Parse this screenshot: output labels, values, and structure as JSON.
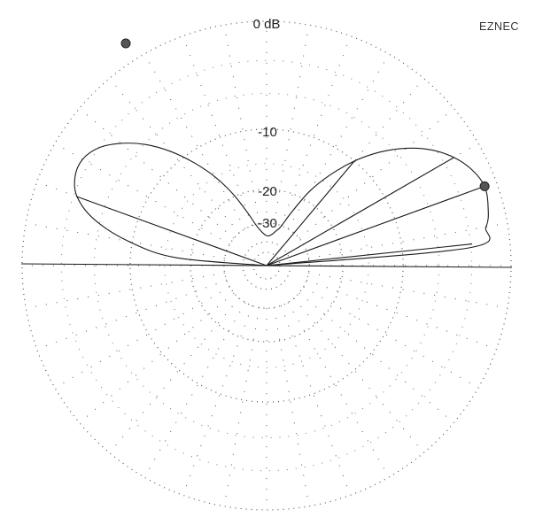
{
  "app": {
    "brand": "EZNEC"
  },
  "chart_data": {
    "type": "polar",
    "title": "",
    "ring_labels": [
      "0 dB",
      "-10",
      "-20",
      "-30"
    ],
    "ring_levels_db": [
      0,
      -10,
      -20,
      -30
    ],
    "radial_spokes_deg": 10,
    "pattern": {
      "angles_deg": [
        0,
        5,
        10,
        15,
        20,
        25,
        30,
        35,
        40,
        45,
        50,
        55,
        60,
        65,
        70,
        75,
        80,
        85,
        90,
        95,
        100,
        105,
        110,
        115,
        120,
        125,
        130,
        135,
        140,
        145,
        150,
        155,
        160,
        165,
        170,
        175,
        180
      ],
      "gain_db": [
        -99,
        -3.2,
        -1.6,
        -1.1,
        -0.9,
        -1.3,
        -2.1,
        -3.3,
        -5.0,
        -7.2,
        -10.0,
        -13.6,
        -18.0,
        -24.5,
        -30.5,
        -33.0,
        -35.0,
        -36.0,
        -36.0,
        -35.0,
        -33.0,
        -30.0,
        -25.0,
        -19.5,
        -15.0,
        -11.5,
        -8.5,
        -6.1,
        -4.3,
        -3.0,
        -2.4,
        -2.5,
        -3.3,
        -5.4,
        -9.5,
        -17.0,
        -99
      ]
    },
    "cursor_deg": 20,
    "cursor_gain_db": -0.9,
    "indicator_lines_deg": [
      6,
      20,
      30,
      50,
      160
    ],
    "colors": {
      "trace": "#1a1a1a",
      "grid": "#555555",
      "marker": "#333333"
    }
  }
}
